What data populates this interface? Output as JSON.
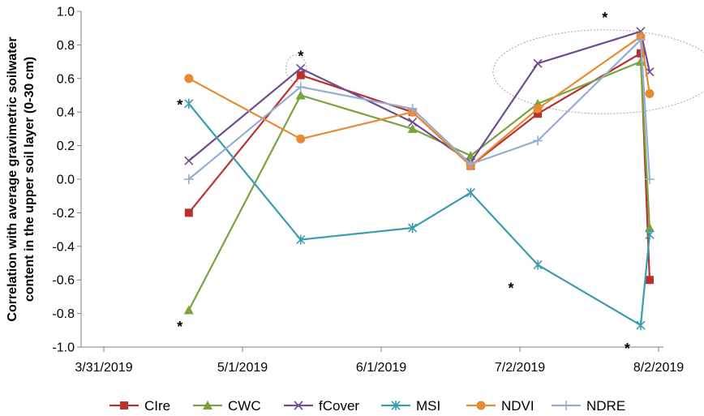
{
  "chart_data": {
    "type": "line",
    "title": "",
    "xlabel": "",
    "ylabel_lines": [
      "Correlation with average gravimetric soilwater",
      "content in the upper soil layer (0-30 cm)"
    ],
    "ylim": [
      -1.0,
      1.0
    ],
    "y_ticks": [
      -1.0,
      -0.8,
      -0.6,
      -0.4,
      -0.2,
      0.0,
      0.2,
      0.4,
      0.6,
      0.8,
      1.0
    ],
    "y_tick_labels": [
      "-1.0",
      "-0.8",
      "-0.6",
      "-0.4",
      "-0.2",
      "0.0",
      "0.2",
      "0.4",
      "0.6",
      "0.8",
      "1.0"
    ],
    "x_ticks": [
      "2019-03-31",
      "2019-05-01",
      "2019-06-01",
      "2019-07-02",
      "2019-08-02"
    ],
    "x_tick_labels": [
      "3/31/2019",
      "5/1/2019",
      "6/1/2019",
      "7/2/2019",
      "8/2/2019"
    ],
    "x": [
      "2019-04-19",
      "2019-05-14",
      "2019-06-08",
      "2019-06-21",
      "2019-07-06",
      "2019-07-29",
      "2019-07-31"
    ],
    "grid": false,
    "legend_position": "bottom",
    "series": [
      {
        "name": "CIre",
        "color": "#b8312f",
        "marker": "square",
        "values": [
          -0.2,
          0.62,
          0.4,
          0.08,
          0.39,
          0.75,
          -0.6
        ]
      },
      {
        "name": "CWC",
        "color": "#7aa33c",
        "marker": "triangle",
        "values": [
          -0.78,
          0.5,
          0.3,
          0.14,
          0.45,
          0.7,
          -0.29
        ]
      },
      {
        "name": "fCover",
        "color": "#6e4c91",
        "marker": "x",
        "values": [
          0.11,
          0.66,
          0.34,
          0.1,
          0.69,
          0.88,
          0.64
        ]
      },
      {
        "name": "MSI",
        "color": "#3a9cad",
        "marker": "star",
        "values": [
          0.45,
          -0.36,
          -0.29,
          -0.08,
          -0.51,
          -0.87,
          -0.33
        ]
      },
      {
        "name": "NDVI",
        "color": "#e88a34",
        "marker": "circle",
        "values": [
          0.6,
          0.24,
          0.4,
          0.08,
          0.42,
          0.85,
          0.51
        ]
      },
      {
        "name": "NDRE",
        "color": "#93aed2",
        "marker": "plus",
        "values": [
          0.0,
          0.55,
          0.42,
          0.09,
          0.23,
          0.83,
          0.0
        ]
      }
    ],
    "annotations": [
      {
        "text": "*",
        "x": "2019-04-17",
        "y": 0.47
      },
      {
        "text": "*",
        "x": "2019-04-17",
        "y": -0.85
      },
      {
        "text": "*",
        "x": "2019-05-14",
        "y": 0.76
      },
      {
        "text": "*",
        "x": "2019-06-30",
        "y": -0.62
      },
      {
        "text": "*",
        "x": "2019-07-21",
        "y": 0.99
      },
      {
        "text": "*",
        "x": "2019-07-26",
        "y": -0.98
      }
    ],
    "highlight_ellipses": [
      {
        "center_x": "2019-05-13",
        "center_y": 0.66,
        "rx_days": 2.3,
        "ry": 0.08
      },
      {
        "center_x": "2019-07-21",
        "center_y": 0.64,
        "rx_days": 25,
        "ry": 0.25
      }
    ]
  }
}
